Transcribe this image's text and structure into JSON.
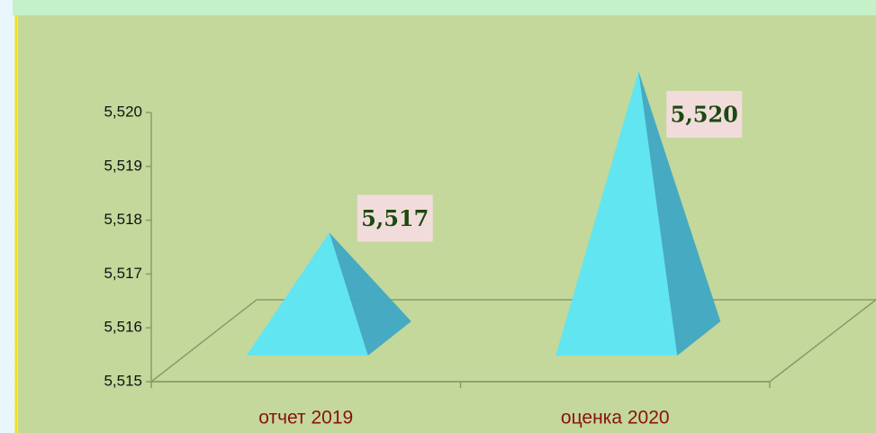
{
  "chart_data": {
    "type": "pyramid",
    "categories": [
      "отчет 2019",
      "оценка 2020"
    ],
    "values": [
      5.517,
      5.52
    ],
    "value_labels": [
      "5,517",
      "5,520"
    ],
    "color": "#5ce6f5",
    "ylim": [
      5.515,
      5.52
    ],
    "yticks": [
      {
        "value": 5.515,
        "label": "5,515"
      },
      {
        "value": 5.516,
        "label": "5,516"
      },
      {
        "value": 5.517,
        "label": "5,517"
      },
      {
        "value": 5.518,
        "label": "5,518"
      },
      {
        "value": 5.519,
        "label": "5,519"
      },
      {
        "value": 5.52,
        "label": "5,520"
      }
    ]
  }
}
